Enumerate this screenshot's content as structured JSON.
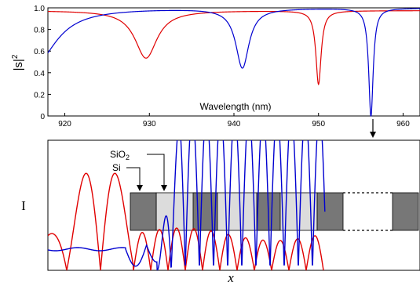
{
  "chart_data": [
    {
      "type": "line",
      "xlabel": "Wavelength (nm)",
      "ylabel": "|s|²",
      "ylabel_base": "|s|",
      "ylabel_sup": "2",
      "xlim": [
        918,
        962
      ],
      "ylim": [
        0,
        1
      ],
      "xticks": [
        920,
        930,
        940,
        950,
        960
      ],
      "yticks": [
        0,
        0.2,
        0.4,
        0.6,
        0.8,
        1.0
      ],
      "ytick_labels": [
        "0",
        "0.2",
        "0.4",
        "0.6",
        "0.8",
        "1.0"
      ],
      "marker_x": 956.2,
      "series": [
        {
          "color": "#e00000",
          "baseline": 0.975,
          "dips": [
            {
              "center": 929.6,
              "depth": 0.44,
              "width": 1.6
            },
            {
              "center": 950.0,
              "depth": 0.68,
              "width": 0.38
            }
          ]
        },
        {
          "color": "#0000d0",
          "baseline": 1.0,
          "dips": [
            {
              "center": 941.0,
              "depth": 0.55,
              "width": 0.95
            },
            {
              "center": 956.2,
              "depth": 1.0,
              "width": 0.32
            }
          ],
          "edge_dip": {
            "center": 916.5,
            "depth": 0.52,
            "width": 3.0
          }
        }
      ]
    },
    {
      "type": "line",
      "xlabel": "x",
      "ylabel": "I",
      "annotations": {
        "sio2": "SiO",
        "sio2_sub": "2",
        "si": "Si"
      },
      "series": [
        {
          "color": "#e00000"
        },
        {
          "color": "#0000d0"
        }
      ]
    }
  ]
}
